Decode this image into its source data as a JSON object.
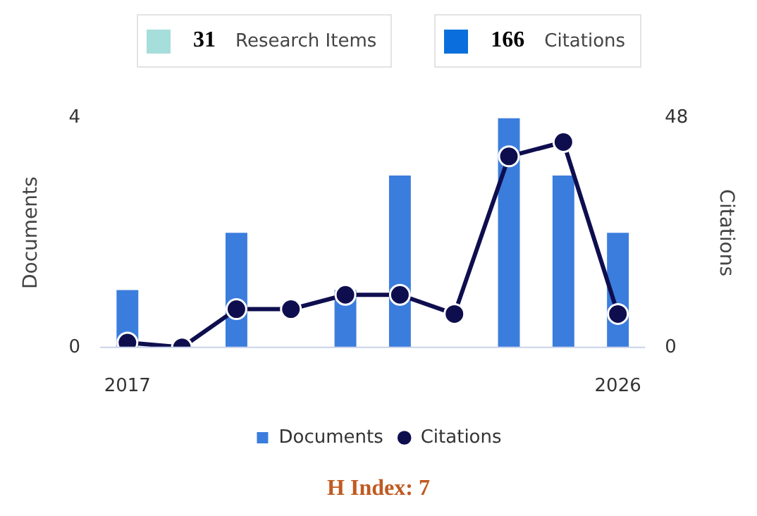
{
  "chart_data": {
    "type": "bar",
    "categories": [
      "2017",
      null,
      null,
      null,
      null,
      null,
      null,
      null,
      null,
      "2026"
    ],
    "series": [
      {
        "name": "Documents",
        "color": "#3b7ddd",
        "values": [
          1,
          0,
          2,
          0,
          1,
          3,
          0,
          4,
          3,
          2
        ]
      },
      {
        "name": "Citations",
        "type": "line",
        "axis": "y2",
        "color": "#0e0e4f",
        "values": [
          1,
          0,
          8,
          8,
          11,
          11,
          7,
          40,
          43,
          7
        ]
      }
    ],
    "ylabel": "Documents",
    "y2label": "Citations",
    "ylim": [
      0,
      4
    ],
    "yticks": [
      0,
      4
    ],
    "y2lim": [
      0,
      48
    ],
    "y2ticks": [
      0,
      48
    ],
    "grid": false,
    "legend": "bottom",
    "marker": "circle",
    "line_style": "solid",
    "annotations": [
      "31 Research Items",
      "166 Citations",
      "H Index: 7"
    ]
  }
}
